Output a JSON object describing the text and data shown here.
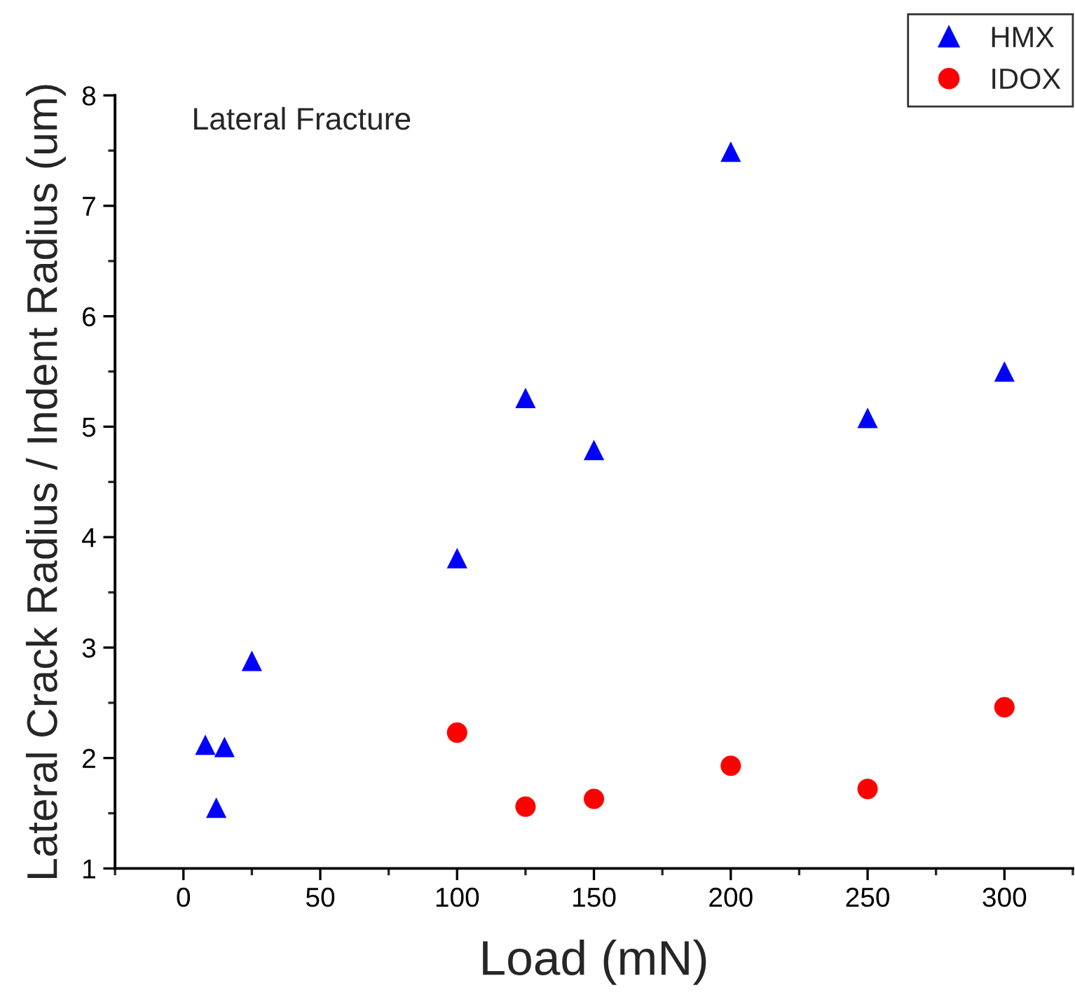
{
  "chart_data": {
    "type": "scatter",
    "xlabel": "Load (mN)",
    "ylabel": "Lateral Crack Radius / Indent Radius (um)",
    "annotations": [
      "Lateral Fracture"
    ],
    "series": [
      {
        "name": "HMX",
        "color": "#0000ff",
        "marker": "triangle",
        "x": [
          8,
          12,
          15,
          25,
          100,
          125,
          150,
          200,
          250,
          300
        ],
        "values": [
          2.12,
          1.55,
          2.1,
          2.88,
          3.81,
          5.26,
          4.79,
          7.49,
          5.08,
          5.5
        ]
      },
      {
        "name": "IDOX",
        "color": "#ff0000",
        "marker": "circle",
        "x": [
          100,
          125,
          150,
          200,
          250,
          300
        ],
        "values": [
          2.23,
          1.56,
          1.63,
          1.93,
          1.72,
          2.46
        ]
      }
    ],
    "xlim": [
      -25,
      325
    ],
    "xticks": [
      0,
      50,
      100,
      150,
      200,
      250,
      300
    ],
    "ylim": [
      1,
      8
    ],
    "yticks": [
      1,
      2,
      3,
      4,
      5,
      6,
      7,
      8
    ],
    "grid": false,
    "legend": "top right"
  }
}
